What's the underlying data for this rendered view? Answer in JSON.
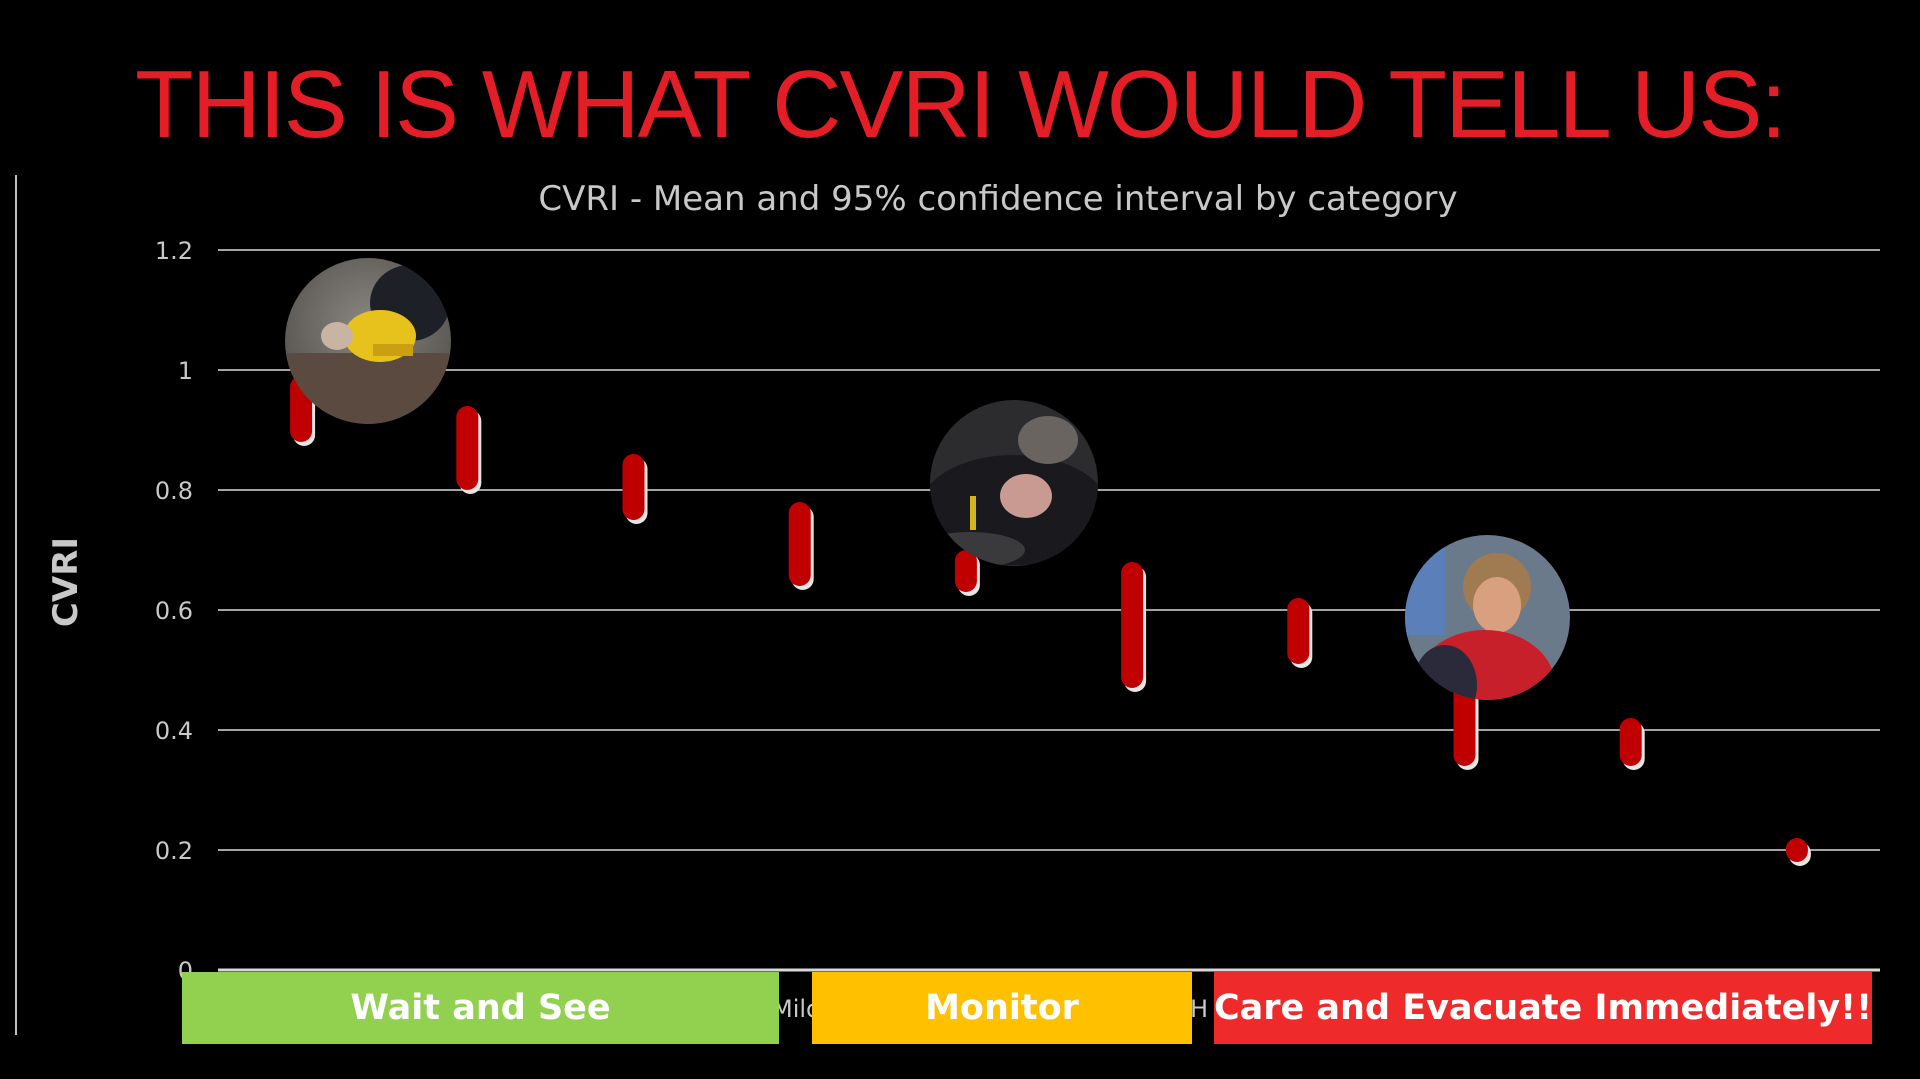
{
  "slide_title": "THIS IS WHAT CVRI WOULD TELL US:",
  "chart_data": {
    "type": "error-bar",
    "title": "CVRI  - Mean and 95% confidence interval by category",
    "ylabel": "CVRI",
    "xlabel": "",
    "ylim": [
      0,
      1.2
    ],
    "y_ticks": [
      "0",
      "0.2",
      "0.4",
      "0.6",
      "0.8",
      "1",
      "1.2"
    ],
    "grid": true,
    "series": [
      {
        "values": [
          {
            "low": 0.88,
            "high": 0.99
          },
          {
            "low": 0.8,
            "high": 0.94
          },
          {
            "low": 0.75,
            "high": 0.86
          },
          {
            "low": 0.64,
            "high": 0.78
          },
          {
            "low": 0.63,
            "high": 0.7
          },
          {
            "low": 0.47,
            "high": 0.68
          },
          {
            "low": 0.51,
            "high": 0.62
          },
          {
            "low": 0.34,
            "high": 0.55
          },
          {
            "low": 0.34,
            "high": 0.42
          },
          {
            "low": 0.18,
            "high": 0.22
          }
        ]
      }
    ],
    "partial_tick_labels": [
      "Mild",
      "H"
    ]
  },
  "bands": [
    {
      "label": "Wait and See",
      "color": "#92d050"
    },
    {
      "label": "Monitor",
      "color": "#ffc000"
    },
    {
      "label": "Care and Evacuate Immediately!!",
      "color": "#ef2a2a"
    }
  ],
  "photos": [
    {
      "name": "casualty-photo-yellow-jacket"
    },
    {
      "name": "casualty-photo-bald-man"
    },
    {
      "name": "casualty-photo-woman-red"
    }
  ],
  "colors": {
    "title": "#e41e26",
    "bar": "#c00000",
    "grid": "#d9d9d9",
    "text": "#c8c8c8"
  }
}
